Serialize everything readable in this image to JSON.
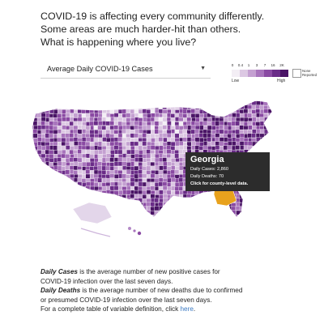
{
  "headline": {
    "line1": "COVID-19 is affecting every community differently.",
    "line2": "Some areas are much harder-hit than others.",
    "line3": "What is happening where you live?"
  },
  "variable_select": {
    "selected": "Average Daily COVID-19 Cases"
  },
  "legend": {
    "ticks": [
      "0",
      "0.4",
      "1",
      "3",
      "7",
      "16",
      "2K"
    ],
    "low_label": "Low",
    "high_label": "High",
    "none_label": "None Reported",
    "colors": [
      "#f3eef5",
      "#dcc8e3",
      "#c4a0d1",
      "#a874bc",
      "#8a4aa3",
      "#6a2c88",
      "#4a1466"
    ]
  },
  "tooltip": {
    "state": "Georgia",
    "cases_label": "Daily Cases:",
    "cases_value": "2,860",
    "deaths_label": "Daily Deaths:",
    "deaths_value": "70",
    "cta": "Click for county-level data."
  },
  "highlight_color": "#e8a21d",
  "notes": {
    "p1_term": "Daily Cases",
    "p1_rest": " is the average number of new positive cases for",
    "p1_line2": "COVID-19 infection over the last seven days.",
    "p2_term": "Daily Deaths",
    "p2_rest": " is the average number of new deaths due to confirmed",
    "p2_line2": "or presumed COVID-19 infection over the last seven days.",
    "p3_text": "For a complete table of variable definition, click ",
    "p3_link": "here",
    "p3_end": "."
  }
}
